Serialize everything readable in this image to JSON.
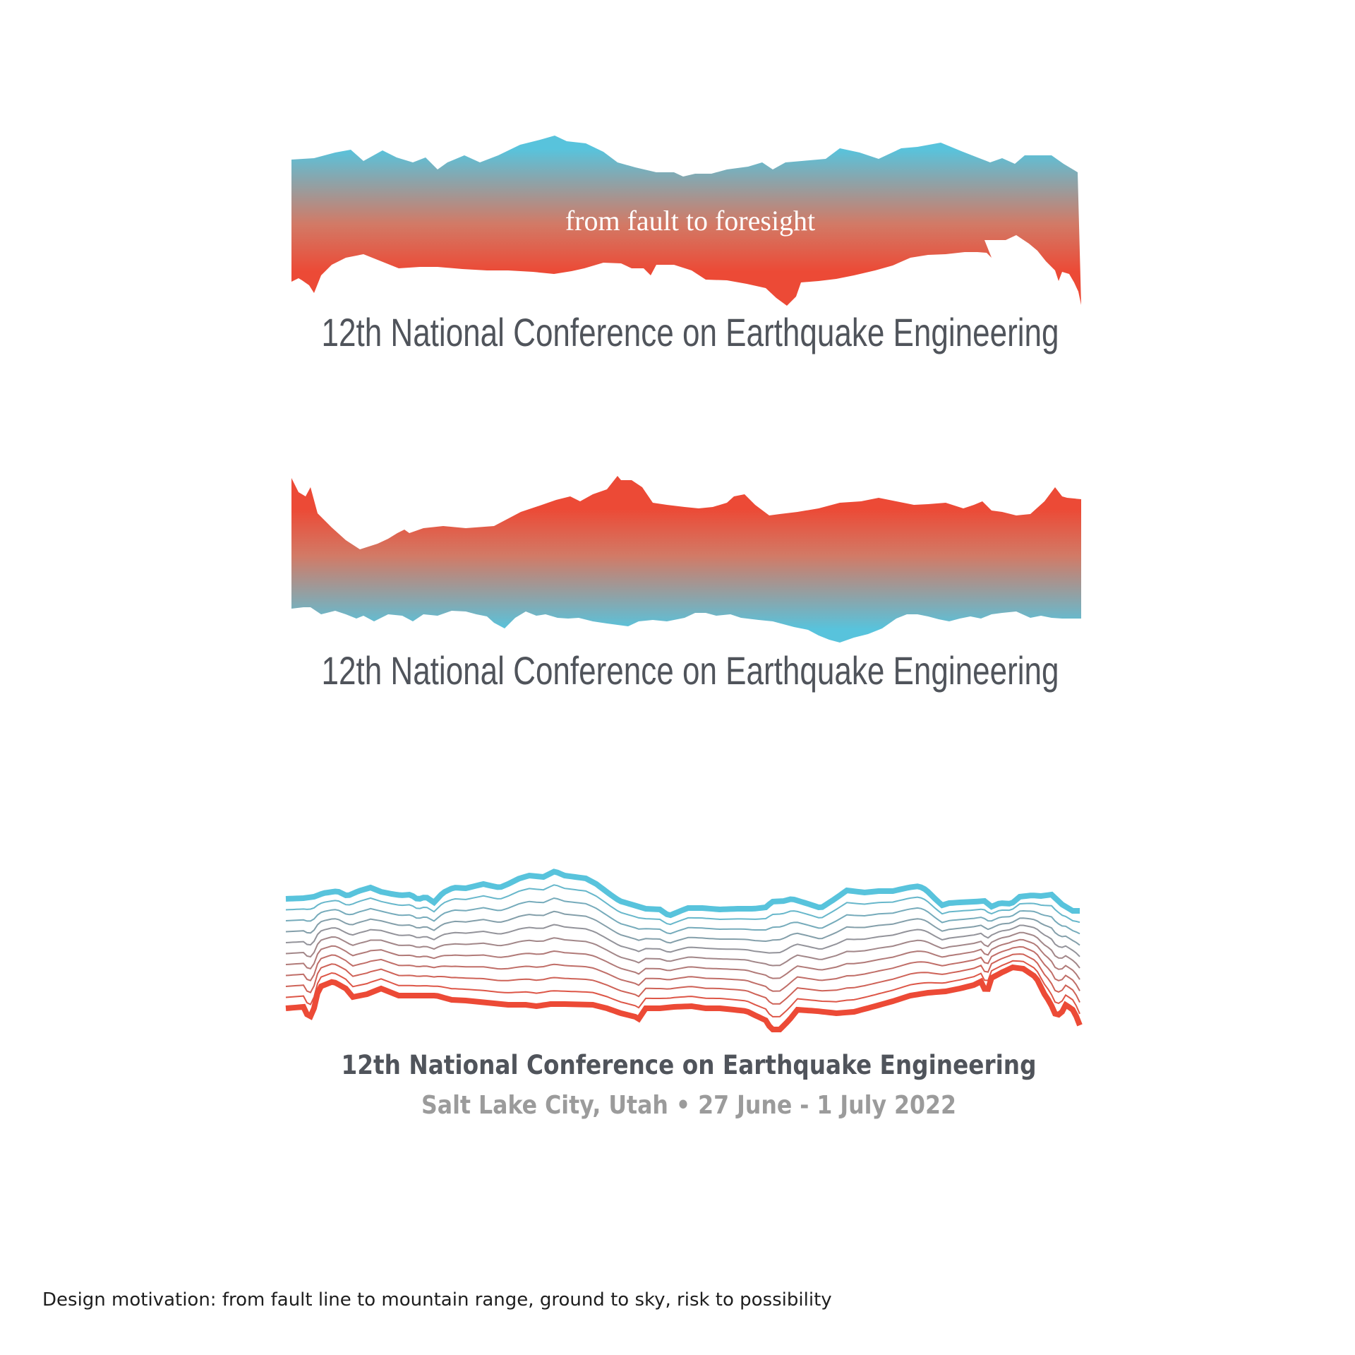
{
  "colors": {
    "sky": "#58c3dc",
    "fault": "#ec4a36",
    "mid": "#b89688",
    "title_text": "#50545b",
    "subtitle_text": "#9b9b9b",
    "tagline_text": "#ffffff",
    "background": "#ffffff"
  },
  "logo_variants": [
    {
      "variant": "filled band, sky on top",
      "tagline": "from fault to foresight",
      "title": "12th National Conference on Earthquake Engineering"
    },
    {
      "variant": "filled band, inverted (fault on top)",
      "title": "12th National Conference on Earthquake Engineering"
    },
    {
      "variant": "line ensemble, sky line to fault line",
      "title": "12th National Conference on Earthquake Engineering",
      "subtitle": "Salt Lake City, Utah • 27 June - 1 July 2022"
    }
  ],
  "footnote": "Design motivation: from fault line to mountain range, ground to sky, risk to possibility"
}
